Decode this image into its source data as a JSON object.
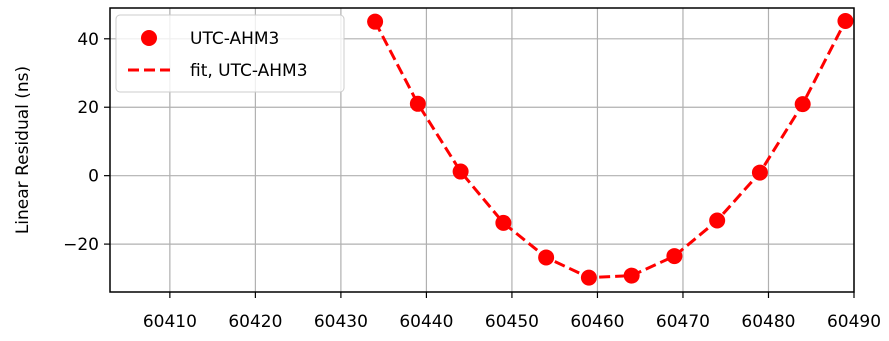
{
  "chart_data": {
    "type": "scatter",
    "title": "",
    "xlabel": "",
    "ylabel": "Linear Residual (ns)",
    "xlim": [
      60403,
      60490
    ],
    "ylim": [
      -34,
      49
    ],
    "x_ticks": [
      60410,
      60420,
      60430,
      60440,
      60450,
      60460,
      60470,
      60480,
      60490
    ],
    "y_ticks": [
      40,
      20,
      0,
      -20
    ],
    "y_tick_labels": [
      "40",
      "20",
      "0",
      "−20"
    ],
    "grid": true,
    "legend_position": "top-left",
    "colors": {
      "series": "#ff0000",
      "grid": "#b0b0b0",
      "axis": "#000000"
    },
    "series": [
      {
        "name": "UTC-AHM3",
        "style": "markers",
        "x": [
          60434,
          60439,
          60444,
          60449,
          60454,
          60459,
          60464,
          60469,
          60474,
          60479,
          60484,
          60489
        ],
        "y": [
          45,
          21,
          1.2,
          -13.8,
          -23.9,
          -29.8,
          -29.2,
          -23.5,
          -13.1,
          0.9,
          20.9,
          45.2
        ]
      },
      {
        "name": "fit, UTC-AHM3",
        "style": "dashed-line",
        "x": [
          60434,
          60439,
          60444,
          60449,
          60454,
          60459,
          60464,
          60469,
          60474,
          60479,
          60484,
          60489
        ],
        "y": [
          45,
          21,
          1.2,
          -13.8,
          -23.9,
          -29.8,
          -29.2,
          -23.5,
          -13.1,
          0.9,
          20.9,
          45.2
        ]
      }
    ]
  }
}
